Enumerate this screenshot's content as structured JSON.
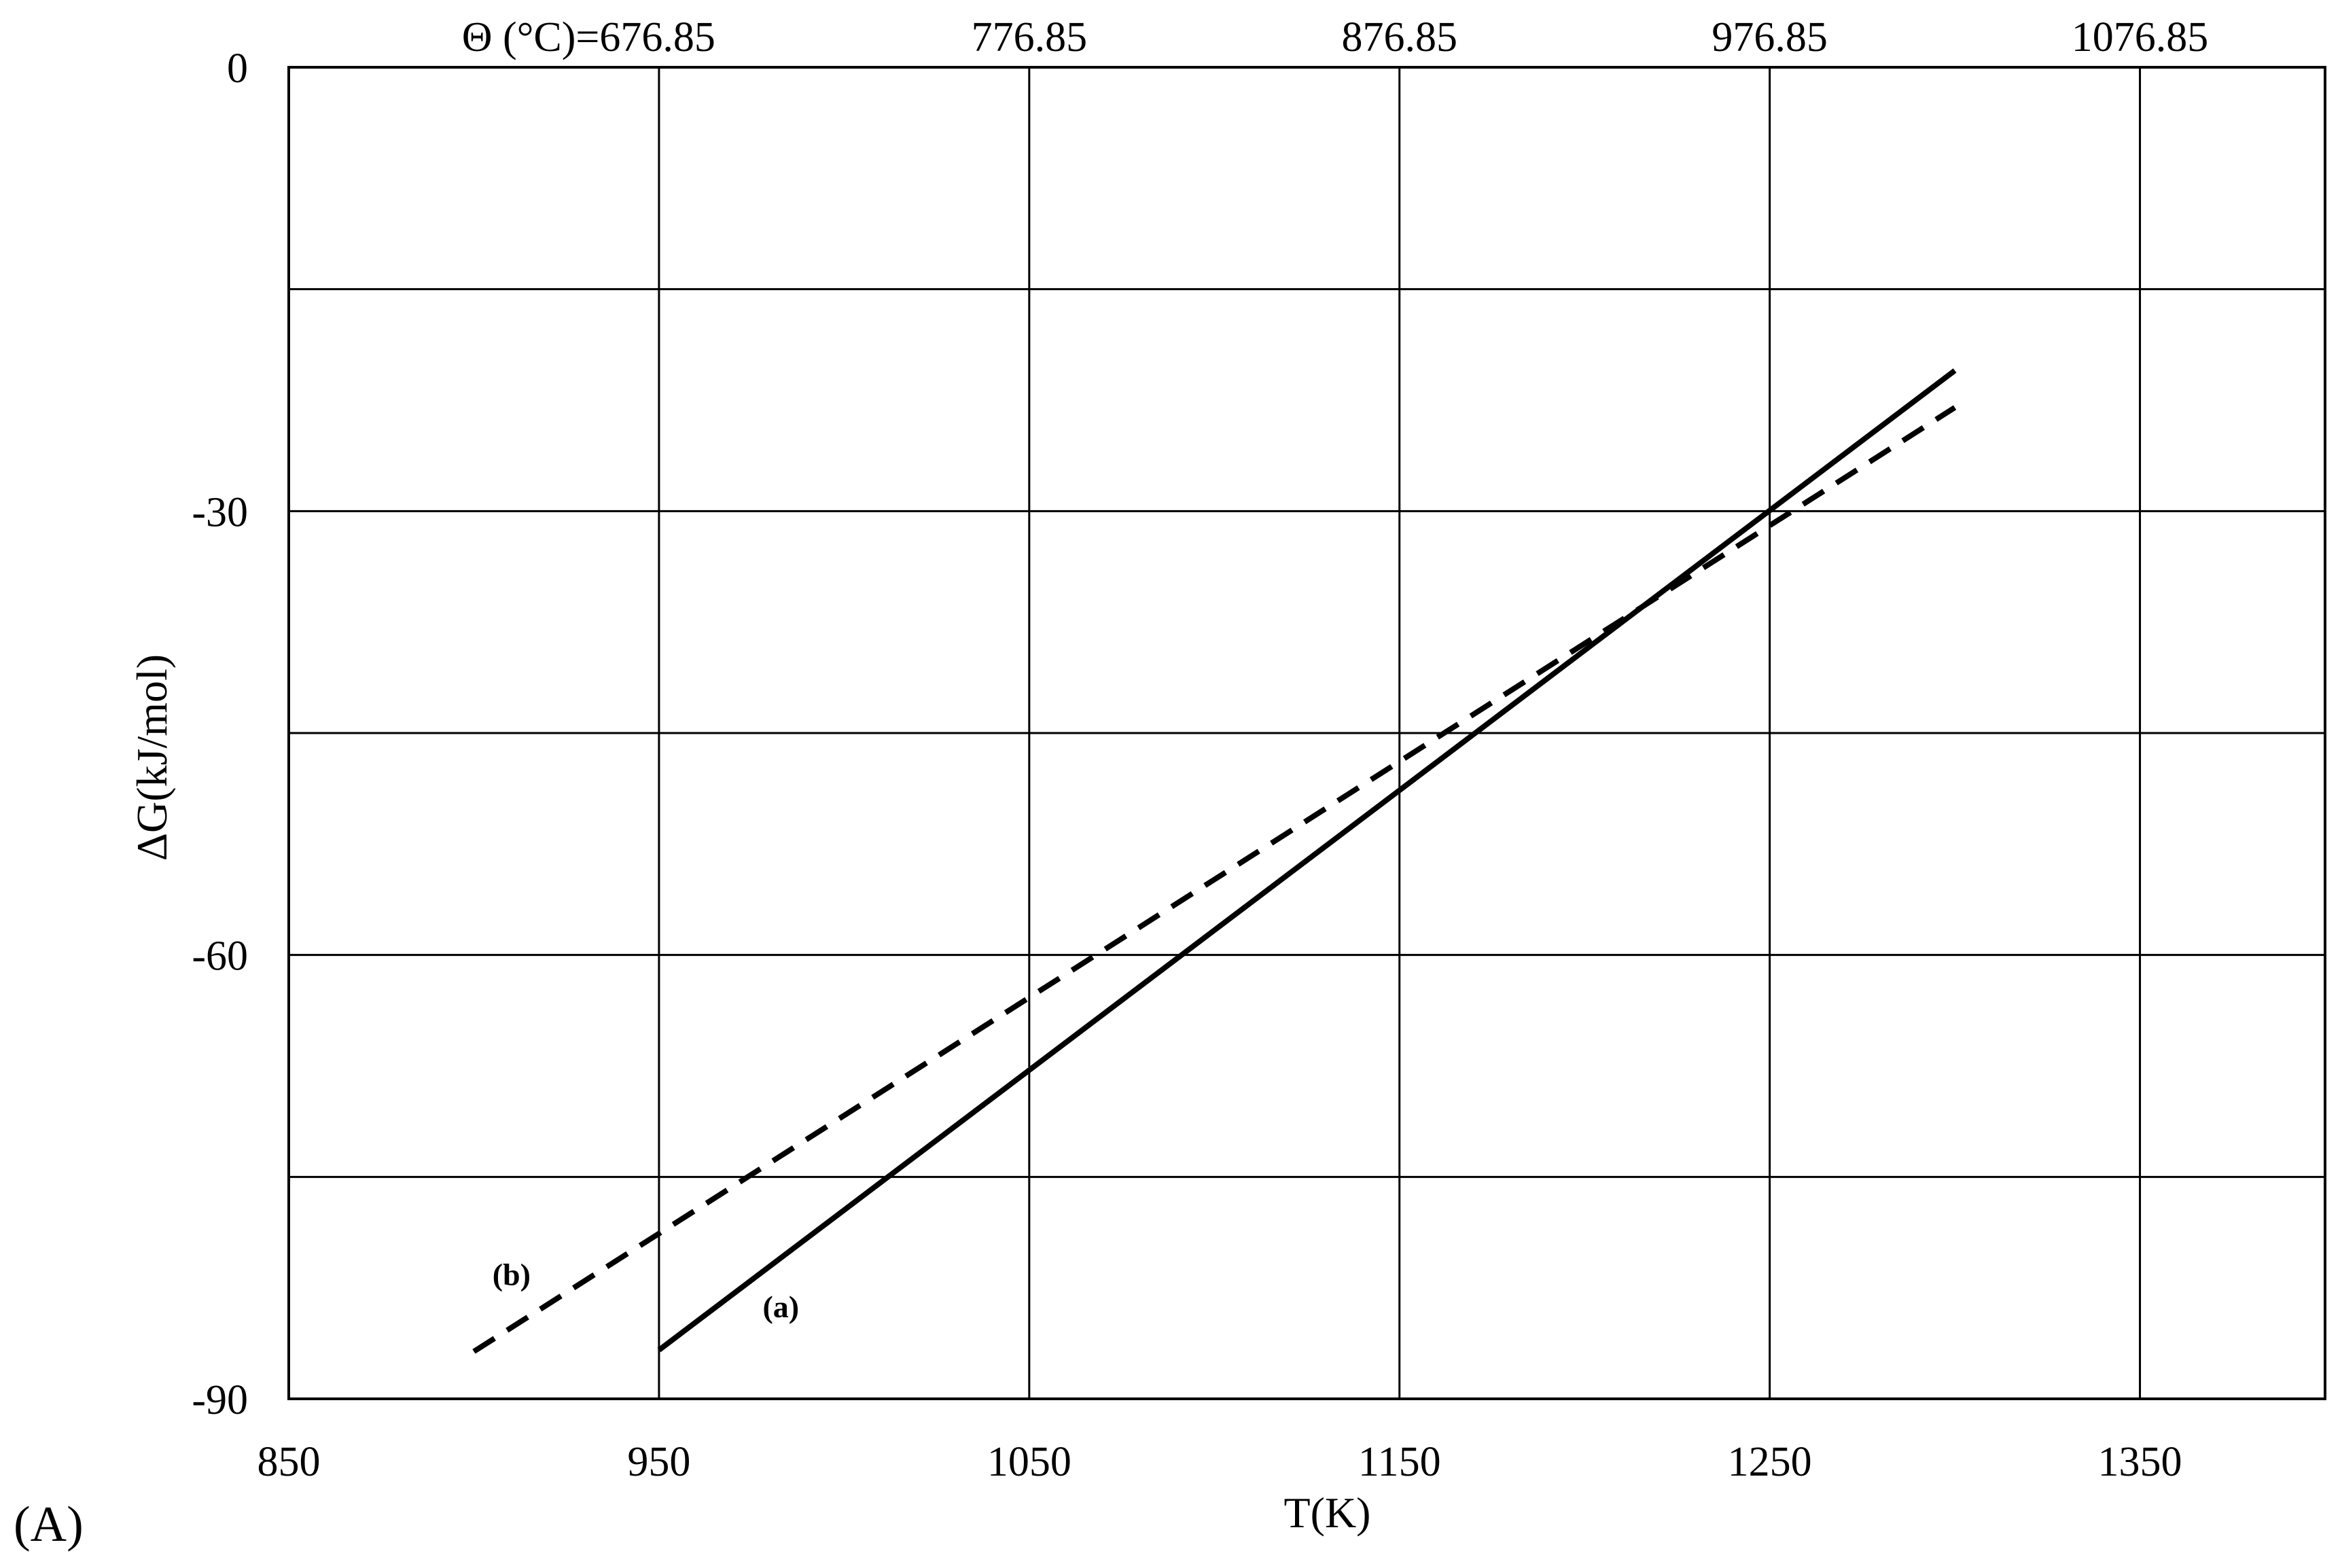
{
  "panel_label": "(A)",
  "chart_data": {
    "type": "line",
    "xlabel": "T(K)",
    "ylabel": "ΔG(kJ/mol)",
    "xlim": [
      850,
      1400
    ],
    "ylim": [
      -90,
      0
    ],
    "x_ticks": [
      850,
      950,
      1050,
      1150,
      1250,
      1350
    ],
    "y_ticks": [
      0,
      -30,
      -60,
      -90
    ],
    "x_grid": [
      950,
      1050,
      1150,
      1250,
      1350
    ],
    "y_grid": [
      -15,
      -30,
      -45,
      -60,
      -75
    ],
    "grid": true,
    "top_axis": {
      "label_prefix": "Θ (°C)=",
      "ticks": [
        {
          "x": 950,
          "label": "676.85"
        },
        {
          "x": 1050,
          "label": "776.85"
        },
        {
          "x": 1150,
          "label": "876.85"
        },
        {
          "x": 1250,
          "label": "976.85"
        },
        {
          "x": 1350,
          "label": "1076.85"
        }
      ]
    },
    "series": [
      {
        "name": "(a)",
        "style": "solid",
        "color": "#000000",
        "x": [
          950,
          1300
        ],
        "y": [
          -86.7,
          -20.5
        ],
        "label_at": [
          978,
          -84.5
        ]
      },
      {
        "name": "(b)",
        "style": "dashed",
        "color": "#000000",
        "x": [
          900,
          1300
        ],
        "y": [
          -86.8,
          -23.0
        ],
        "label_at": [
          905,
          -82.3
        ]
      }
    ]
  }
}
